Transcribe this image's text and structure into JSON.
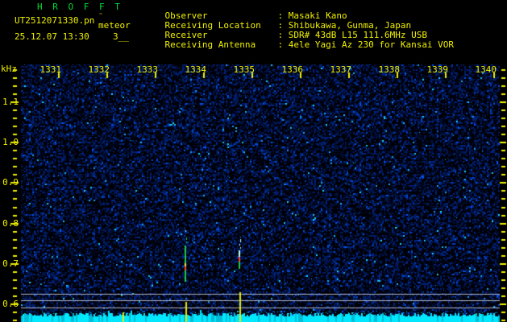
{
  "header": {
    "title": "H R O F F T",
    "filename": "UT2512071330.pn",
    "filename_artifact": "¨",
    "station_overlay": "meteor",
    "datetime": "25.12.07 13:30",
    "counter": "3__",
    "colon": ":",
    "info": [
      {
        "label": "Observer",
        "value": "Masaki Kano"
      },
      {
        "label": "Receiving Location",
        "value": "Shibukawa, Gunma, Japan"
      },
      {
        "label": "Receiver",
        "value": "SDR# 43dB L15 111.6MHz USB"
      },
      {
        "label": "Receiving Antenna",
        "value": "4ele Yagi Az 230 for Kansai VOR"
      }
    ]
  },
  "axes": {
    "y_unit": "kHz",
    "y_ticks": [
      "1.1",
      "1.0",
      "0.9",
      "0.8",
      "0.7",
      "0.6"
    ],
    "x_ticks": [
      "1331",
      "1332",
      "1333",
      "1334",
      "1335",
      "1336",
      "1337",
      "1338",
      "1339",
      "1340"
    ]
  },
  "colors": {
    "accent_yellow": "#f0f000",
    "title_green": "#00dd33",
    "ref_line_grey": "#b4b4c4",
    "strip_cyan": "#00e8ff",
    "echo_green": "#22cc44",
    "echo_yellow": "#ffe022",
    "echo_red": "#ff4422",
    "echo_cyan": "#c0ffee",
    "noise_dark_blue": "#2030a0"
  },
  "chart_data": {
    "type": "heatmap",
    "title": "HROFFT meteor radio spectrogram UT2512071330",
    "x_label_ticks": [
      "1331",
      "1332",
      "1333",
      "1334",
      "1335",
      "1336",
      "1337",
      "1338",
      "1339",
      "1340"
    ],
    "x_range_utc": [
      "1330",
      "1340"
    ],
    "y_unit": "kHz",
    "y_tick_khz": [
      1.1,
      1.0,
      0.9,
      0.8,
      0.7,
      0.6
    ],
    "y_range_khz": [
      0.556,
      1.194
    ],
    "grid": false,
    "legend": "none",
    "reference_lines_khz": [
      0.626,
      0.61,
      0.592
    ],
    "echoes": [
      {
        "time_utc": 1333.62,
        "segments": [
          {
            "khz_top": 0.745,
            "khz_bottom": 0.702,
            "color": "echo_green"
          },
          {
            "khz_top": 0.702,
            "khz_bottom": 0.694,
            "color": "echo_yellow"
          },
          {
            "khz_top": 0.694,
            "khz_bottom": 0.684,
            "color": "echo_red"
          },
          {
            "khz_top": 0.684,
            "khz_bottom": 0.656,
            "color": "echo_green"
          }
        ]
      },
      {
        "time_utc": 1334.73,
        "segments": [
          {
            "khz_top": 0.734,
            "khz_bottom": 0.718,
            "color": "echo_cyan"
          },
          {
            "khz_top": 0.718,
            "khz_bottom": 0.706,
            "color": "echo_red"
          },
          {
            "khz_top": 0.706,
            "khz_bottom": 0.688,
            "color": "echo_green"
          }
        ]
      }
    ],
    "event_marks": [
      {
        "time_utc": 1332.32,
        "khz_top": 0.58,
        "khz_bottom": 0.556
      },
      {
        "time_utc": 1333.62,
        "khz_top": 0.606,
        "khz_bottom": 0.556
      },
      {
        "time_utc": 1334.73,
        "khz_top": 0.63,
        "khz_bottom": 0.556
      }
    ],
    "noise_floor_strip": {
      "present": true,
      "khz_top": 0.572
    }
  }
}
